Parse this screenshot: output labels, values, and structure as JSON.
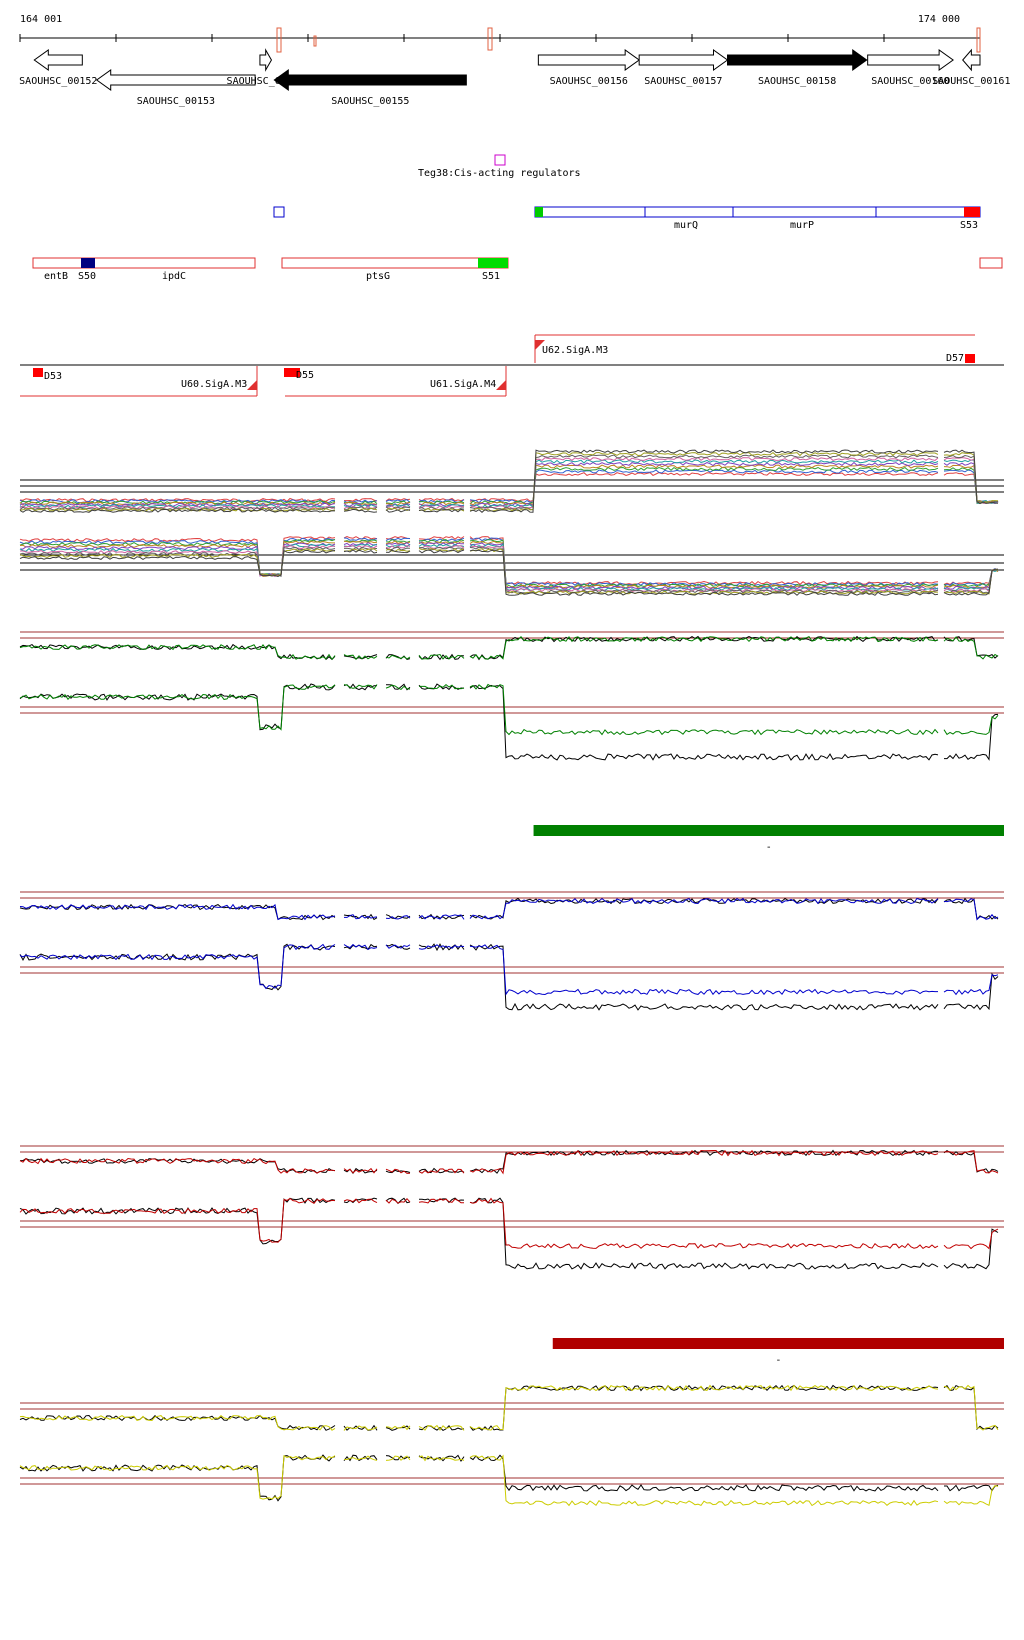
{
  "axis": {
    "start_label": "164 001",
    "end_label": "174 000",
    "start_bp": 164001,
    "end_bp": 174000
  },
  "genes": [
    {
      "label": "SAOUHSC_00152",
      "start": 164150,
      "end": 164650,
      "strand": "-",
      "filled": false
    },
    {
      "label": "SAOUHSC_00153",
      "start": 164800,
      "end": 166450,
      "strand": "-",
      "filled": false
    },
    {
      "label": "SAOUHSC_00154",
      "start": 166500,
      "end": 166620,
      "strand": "+",
      "filled": false
    },
    {
      "label": "SAOUHSC_00155",
      "start": 166650,
      "end": 168650,
      "strand": "-",
      "filled": true
    },
    {
      "label": "SAOUHSC_00156",
      "start": 169400,
      "end": 170450,
      "strand": "+",
      "filled": false
    },
    {
      "label": "SAOUHSC_00157",
      "start": 170450,
      "end": 171370,
      "strand": "+",
      "filled": false
    },
    {
      "label": "SAOUHSC_00158",
      "start": 171370,
      "end": 172820,
      "strand": "+",
      "filled": true
    },
    {
      "label": "SAOUHSC_00160",
      "start": 172830,
      "end": 173720,
      "strand": "+",
      "filled": false
    },
    {
      "label": "SAOUHSC_00161",
      "start": 173820,
      "end": 174000,
      "strand": "-",
      "filled": false
    }
  ],
  "regulator": {
    "label": "Teg38:Cis-acting regulators"
  },
  "operons": [
    {
      "labels": [
        "entB",
        "S50",
        "ipdC"
      ]
    },
    {
      "labels": [
        "ptsG",
        "S51"
      ]
    },
    {
      "labels": [
        "murQ",
        "murP",
        "S53"
      ]
    }
  ],
  "transcripts": [
    {
      "label": "U62.SigA.M3"
    },
    {
      "label": "D57"
    },
    {
      "label": "D53"
    },
    {
      "label": "U60.SigA.M3"
    },
    {
      "label": "D55"
    },
    {
      "label": "U61.SigA.M4"
    }
  ],
  "bars": [
    {
      "label": "-",
      "color": "#008000",
      "start": 169350,
      "end": 174000
    },
    {
      "label": "-",
      "color": "#b00000",
      "start": 169550,
      "end": 174000
    }
  ],
  "tracks": {
    "colors": [
      "#008000",
      "#0000cc",
      "#c00000",
      "#cccc00"
    ]
  }
}
